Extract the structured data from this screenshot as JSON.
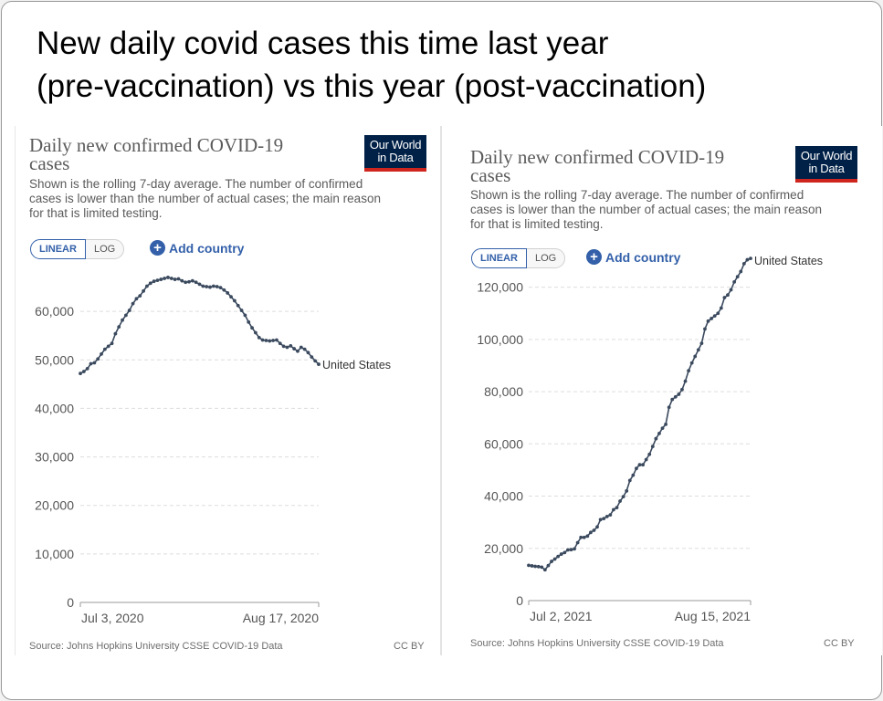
{
  "headline_line1": "New daily covid cases this time last year",
  "headline_line2": "(pre-vaccination) vs this year (post-vaccination)",
  "panels": [
    {
      "title_line1": "Daily new confirmed COVID-19",
      "title_line2": "cases",
      "subtitle_line1": "Shown is the rolling 7-day average. The number of confirmed",
      "subtitle_line2": "cases is lower than the number of actual cases; the main reason",
      "subtitle_line3": "for that is limited testing.",
      "logo_line1": "Our World",
      "logo_line2": "in Data",
      "linear_label": "LINEAR",
      "log_label": "LOG",
      "add_country_label": "Add country",
      "source": "Source: Johns Hopkins University CSSE COVID-19 Data",
      "license": "CC BY"
    },
    {
      "title_line1": "Daily new confirmed COVID-19",
      "title_line2": "cases",
      "subtitle_line1": "Shown is the rolling 7-day average. The number of confirmed",
      "subtitle_line2": "cases is lower than the number of actual cases; the main reason",
      "subtitle_line3": "for that is limited testing.",
      "logo_line1": "Our World",
      "logo_line2": "in Data",
      "linear_label": "LINEAR",
      "log_label": "LOG",
      "add_country_label": "Add country",
      "source": "Source: Johns Hopkins University CSSE COVID-19 Data",
      "license": "CC BY"
    }
  ],
  "colors": {
    "line": "#3b4a5e",
    "accent": "#3360a9",
    "logo_bg": "#002147",
    "logo_bar": "#ce261e",
    "grid": "#dddddd"
  },
  "chart_data": [
    {
      "type": "line",
      "title": "Daily new confirmed COVID-19 cases",
      "series": [
        {
          "name": "United States",
          "values": [
            47200,
            47600,
            48200,
            49200,
            49400,
            50200,
            51200,
            52200,
            52800,
            53400,
            55400,
            56800,
            58200,
            59200,
            60200,
            61600,
            62600,
            63200,
            64200,
            65200,
            65800,
            66200,
            66400,
            66600,
            66800,
            67000,
            66800,
            66600,
            66700,
            66300,
            66000,
            66100,
            66300,
            66000,
            65600,
            65200,
            65100,
            65000,
            65200,
            65100,
            64900,
            64400,
            63800,
            63000,
            62200,
            61200,
            60200,
            59200,
            57800,
            56600,
            55600,
            54600,
            54100,
            54000,
            53900,
            54000,
            54100,
            53400,
            52800,
            52600,
            52900,
            52300,
            51800,
            52600,
            52200,
            51500,
            50600,
            49800,
            49100
          ]
        }
      ],
      "x_first_label": "Jul 3, 2020",
      "x_last_label": "Aug 17, 2020",
      "y_ticks": [
        0,
        10000,
        20000,
        30000,
        40000,
        50000,
        60000
      ],
      "y_tick_labels": [
        "0",
        "10,000",
        "20,000",
        "30,000",
        "40,000",
        "50,000",
        "60,000"
      ],
      "ylim": [
        0,
        70000
      ]
    },
    {
      "type": "line",
      "title": "Daily new confirmed COVID-19 cases",
      "series": [
        {
          "name": "United States",
          "values": [
            13500,
            13300,
            13100,
            13000,
            12800,
            11800,
            13400,
            15000,
            15900,
            16900,
            17800,
            18400,
            19400,
            19500,
            19800,
            22200,
            24200,
            24200,
            24700,
            26100,
            26900,
            28200,
            31000,
            31400,
            32200,
            32800,
            34800,
            35600,
            38100,
            39800,
            42000,
            46000,
            48000,
            50600,
            52000,
            52000,
            54000,
            56000,
            59000,
            62000,
            64000,
            66000,
            67500,
            74000,
            77000,
            78000,
            79000,
            80800,
            84000,
            88000,
            91000,
            93500,
            96000,
            98500,
            104000,
            107000,
            108000,
            109000,
            110000,
            112000,
            116000,
            117000,
            119000,
            122000,
            124000,
            126000,
            129000,
            130500,
            131000
          ]
        }
      ],
      "x_first_label": "Jul 2, 2021",
      "x_last_label": "Aug 15, 2021",
      "y_ticks": [
        0,
        20000,
        40000,
        60000,
        80000,
        100000,
        120000
      ],
      "y_tick_labels": [
        "0",
        "20,000",
        "40,000",
        "60,000",
        "80,000",
        "100,000",
        "120,000"
      ],
      "ylim": [
        0,
        130000
      ]
    }
  ]
}
